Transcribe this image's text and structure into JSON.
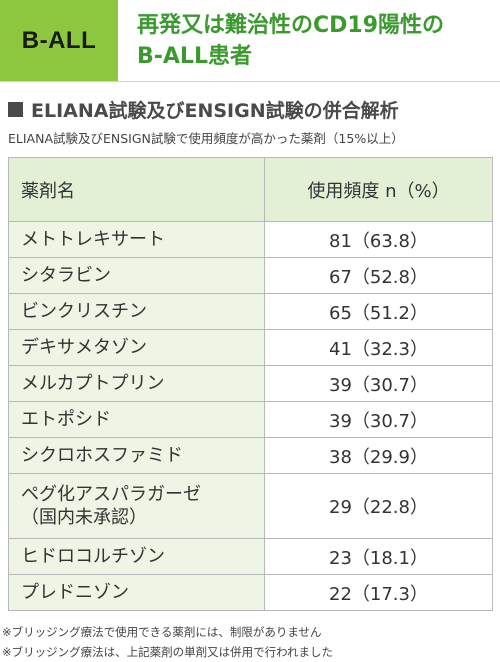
{
  "header": {
    "badge": "B-ALL",
    "title_line1": "再発又は難治性のCD19陽性の",
    "title_line2": "B-ALL患者"
  },
  "section": {
    "title": "ELIANA試験及びENSIGN試験の併合解析",
    "subtitle": "ELIANA試験及びENSIGN試験で使用頻度が高かった薬剤（15%以上）"
  },
  "table": {
    "headers": [
      "薬剤名",
      "使用頻度 n（%）"
    ],
    "rows": [
      {
        "drug": "メトトレキサート",
        "freq": "81（63.8）"
      },
      {
        "drug": "シタラビン",
        "freq": "67（52.8）"
      },
      {
        "drug": "ビンクリスチン",
        "freq": "65（51.2）"
      },
      {
        "drug": "デキサメタゾン",
        "freq": "41（32.3）"
      },
      {
        "drug": "メルカプトプリン",
        "freq": "39（30.7）"
      },
      {
        "drug": "エトポシド",
        "freq": "39（30.7）"
      },
      {
        "drug": "シクロホスファミド",
        "freq": "38（29.9）"
      },
      {
        "drug": "ペグ化アスパラガーゼ",
        "drug2": "（国内未承認）",
        "freq": "29（22.8）"
      },
      {
        "drug": "ヒドロコルチゾン",
        "freq": "23（18.1）"
      },
      {
        "drug": "プレドニゾン",
        "freq": "22（17.3）"
      }
    ]
  },
  "notes": [
    "※ブリッジング療法で使用できる薬剤には、制限がありません",
    "※ブリッジング療法は、上記薬剤の単剤又は併用で行われました"
  ],
  "colors": {
    "badge": "#8dc63f",
    "title": "#3a9a2e",
    "header_row": "#e3f0d6",
    "name_col": "#eef5e4"
  }
}
